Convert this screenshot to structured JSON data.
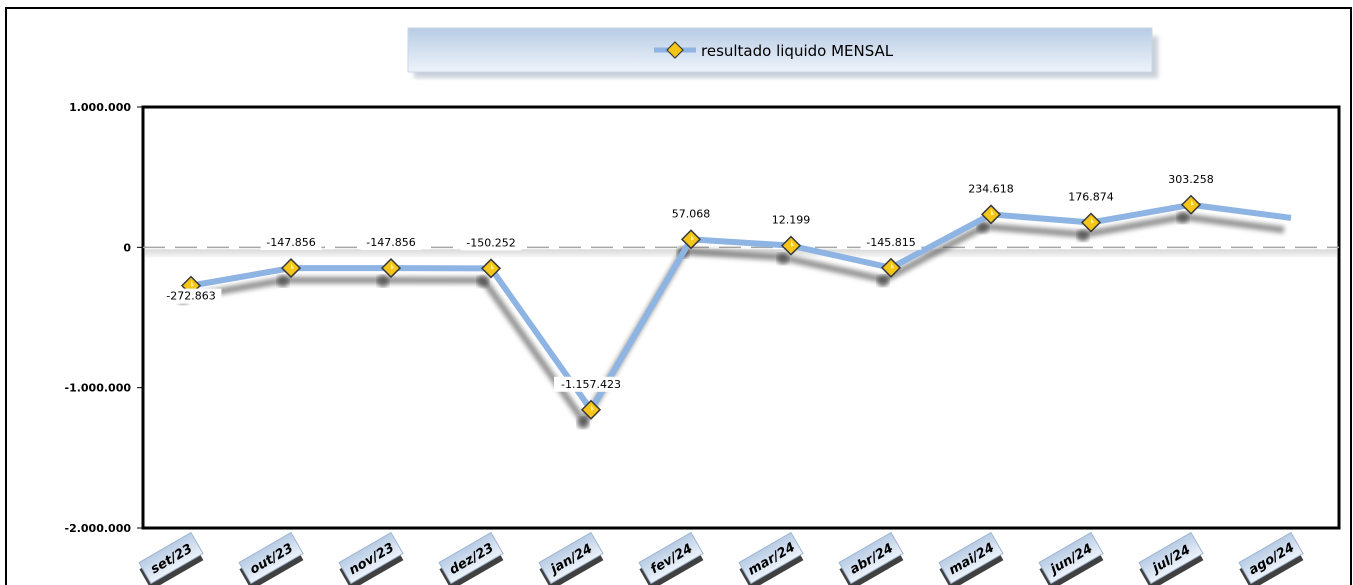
{
  "chart_data": {
    "type": "line",
    "title": "",
    "xlabel": "",
    "ylabel": "",
    "categories": [
      "set/23",
      "out/23",
      "nov/23",
      "dez/23",
      "jan/24",
      "fev/24",
      "mar/24",
      "abr/24",
      "mai/24",
      "jun/24",
      "jul/24",
      "ago/24"
    ],
    "series": [
      {
        "name": "resultado liquido MENSAL",
        "values": [
          -272863,
          -147856,
          -147856,
          -150252,
          -1157423,
          57068,
          12199,
          -145815,
          234618,
          176874,
          303258,
          210000
        ],
        "data_labels": [
          "-272.863",
          "-147.856",
          "-147.856",
          "-150.252",
          "-1.157.423",
          "57.068",
          "12.199",
          "-145.815",
          "234.618",
          "176.874",
          "303.258",
          ""
        ]
      }
    ],
    "ylim": [
      -2000000,
      1000000
    ],
    "yticks": [
      1000000,
      0,
      -1000000,
      -2000000
    ],
    "ytick_labels": [
      "1.000.000",
      "0",
      "-1.000.000",
      "-2.000.000"
    ],
    "legend_position": "top-center",
    "grid": false,
    "colors": {
      "line": "#8eb4e3",
      "marker_fill": "#f5c518",
      "marker_stroke": "#3a3a3a",
      "frame": "#000000",
      "legend_top": "#b8cce4",
      "legend_bottom": "#eef3fa"
    }
  }
}
